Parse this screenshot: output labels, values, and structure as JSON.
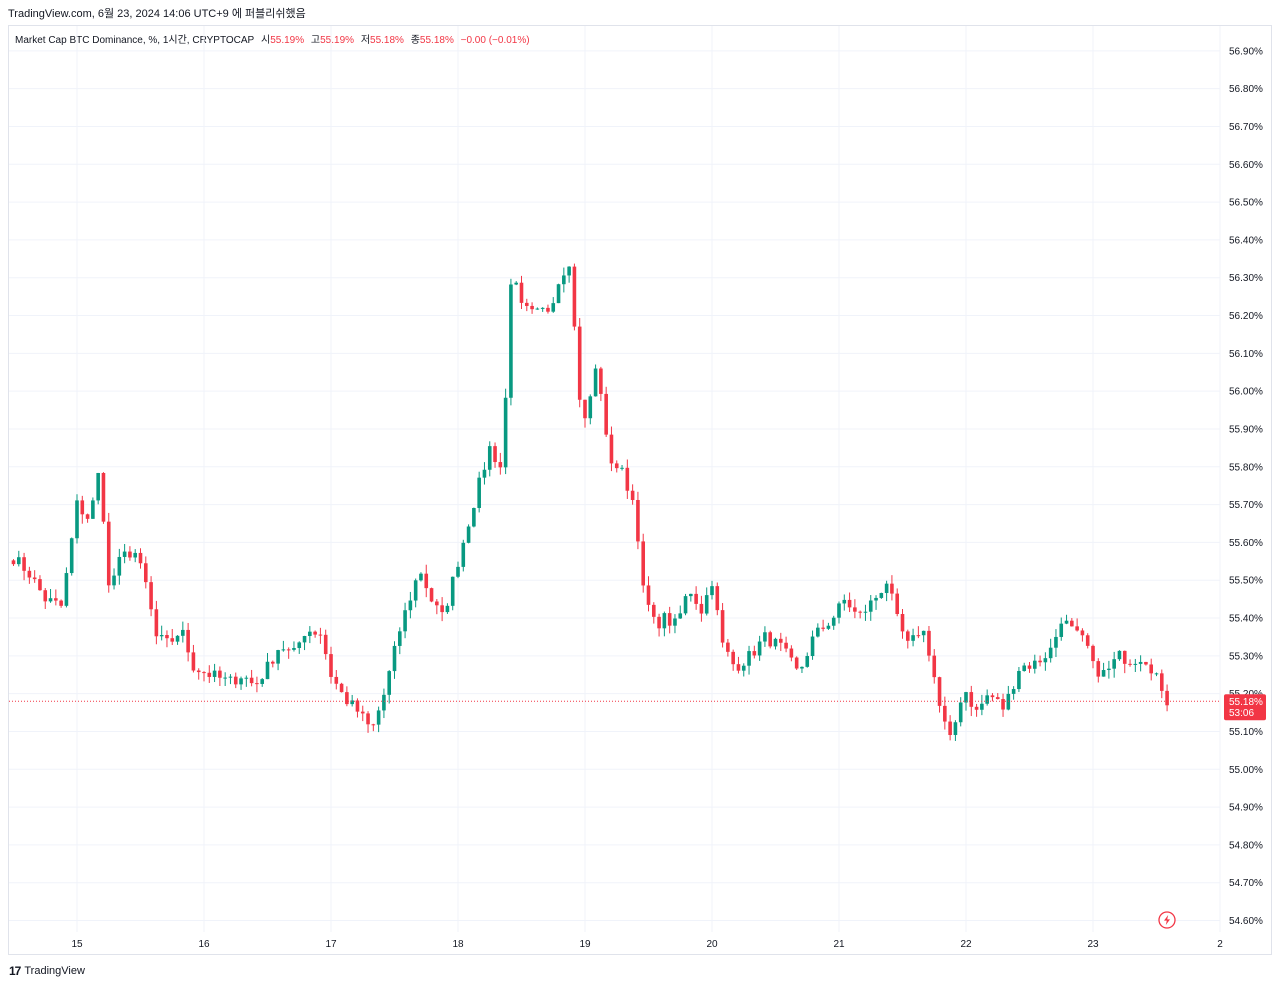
{
  "header": {
    "snapshot_text": "TradingView.com, 6월 23, 2024 14:06 UTC+9 에 퍼블리쉬했음"
  },
  "legend": {
    "symbol": "Market Cap BTC Dominance, %, 1시간, CRYPTOCAP",
    "open_label": "시",
    "open_value": "55.19%",
    "high_label": "고",
    "high_value": "55.19%",
    "low_label": "저",
    "low_value": "55.18%",
    "close_label": "종",
    "close_value": "55.18%",
    "change": "−0.00 (−0.01%)"
  },
  "footer": {
    "brand": "TradingView",
    "logo_icon": "tradingview-logo-icon"
  },
  "colors": {
    "up": "#089981",
    "down": "#f23645",
    "grid": "#f0f3fa",
    "text": "#131722"
  },
  "chart_data": {
    "type": "candlestick",
    "title": "Market Cap BTC Dominance, %, 1시간, CRYPTOCAP",
    "ylim": [
      54.55,
      56.97
    ],
    "y_ticks": [
      "54.60%",
      "54.70%",
      "54.80%",
      "54.90%",
      "55.00%",
      "55.10%",
      "55.20%",
      "55.30%",
      "55.40%",
      "55.50%",
      "55.60%",
      "55.70%",
      "55.80%",
      "55.90%",
      "56.00%",
      "56.10%",
      "56.20%",
      "56.30%",
      "56.40%",
      "56.50%",
      "56.60%",
      "56.70%",
      "56.80%",
      "56.90%"
    ],
    "x_ticks": [
      "15",
      "16",
      "17",
      "18",
      "19",
      "20",
      "21",
      "22",
      "23",
      "2"
    ],
    "last_price_label": "55.18%",
    "countdown_label": "53:06",
    "last_price": 55.18,
    "grid": true,
    "anchors": [
      [
        "14.50",
        55.56
      ],
      [
        "14.62",
        55.52
      ],
      [
        "14.75",
        55.45
      ],
      [
        "14.88",
        55.43
      ],
      [
        "15.00",
        55.7
      ],
      [
        "15.10",
        55.66
      ],
      [
        "15.18",
        55.8
      ],
      [
        "15.25",
        55.48
      ],
      [
        "15.35",
        55.56
      ],
      [
        "15.45",
        55.58
      ],
      [
        "15.55",
        55.48
      ],
      [
        "15.62",
        55.35
      ],
      [
        "15.72",
        55.33
      ],
      [
        "15.82",
        55.37
      ],
      [
        "15.92",
        55.27
      ],
      [
        "16.05",
        55.25
      ],
      [
        "16.20",
        55.23
      ],
      [
        "16.30",
        55.25
      ],
      [
        "16.40",
        55.22
      ],
      [
        "16.50",
        55.27
      ],
      [
        "16.60",
        55.33
      ],
      [
        "16.70",
        55.3
      ],
      [
        "16.80",
        55.37
      ],
      [
        "16.92",
        55.36
      ],
      [
        "17.00",
        55.25
      ],
      [
        "17.10",
        55.19
      ],
      [
        "17.22",
        55.15
      ],
      [
        "17.32",
        55.1
      ],
      [
        "17.42",
        55.2
      ],
      [
        "17.55",
        55.38
      ],
      [
        "17.70",
        55.53
      ],
      [
        "17.80",
        55.44
      ],
      [
        "17.88",
        55.4
      ],
      [
        "18.00",
        55.55
      ],
      [
        "18.12",
        55.7
      ],
      [
        "18.25",
        55.85
      ],
      [
        "18.35",
        55.79
      ],
      [
        "18.42",
        56.32
      ],
      [
        "18.50",
        56.22
      ],
      [
        "18.60",
        56.2
      ],
      [
        "18.72",
        56.22
      ],
      [
        "18.80",
        56.3
      ],
      [
        "18.88",
        56.35
      ],
      [
        "18.95",
        56.0
      ],
      [
        "19.00",
        55.92
      ],
      [
        "19.10",
        56.08
      ],
      [
        "19.18",
        55.83
      ],
      [
        "19.30",
        55.78
      ],
      [
        "19.40",
        55.69
      ],
      [
        "19.45",
        55.48
      ],
      [
        "19.55",
        55.38
      ],
      [
        "19.62",
        55.4
      ],
      [
        "19.72",
        55.38
      ],
      [
        "19.82",
        55.48
      ],
      [
        "19.92",
        55.42
      ],
      [
        "20.00",
        55.5
      ],
      [
        "20.08",
        55.33
      ],
      [
        "20.18",
        55.27
      ],
      [
        "20.30",
        55.3
      ],
      [
        "20.42",
        55.35
      ],
      [
        "20.55",
        55.32
      ],
      [
        "20.68",
        55.25
      ],
      [
        "20.80",
        55.35
      ],
      [
        "20.95",
        55.4
      ],
      [
        "21.05",
        55.45
      ],
      [
        "21.15",
        55.4
      ],
      [
        "21.28",
        55.45
      ],
      [
        "21.38",
        55.5
      ],
      [
        "21.45",
        55.4
      ],
      [
        "21.55",
        55.32
      ],
      [
        "21.65",
        55.38
      ],
      [
        "21.72",
        55.3
      ],
      [
        "21.80",
        55.15
      ],
      [
        "21.88",
        55.07
      ],
      [
        "21.98",
        55.22
      ],
      [
        "22.08",
        55.15
      ],
      [
        "22.18",
        55.2
      ],
      [
        "22.30",
        55.16
      ],
      [
        "22.42",
        55.27
      ],
      [
        "22.55",
        55.28
      ],
      [
        "22.68",
        55.32
      ],
      [
        "22.75",
        55.4
      ],
      [
        "22.85",
        55.36
      ],
      [
        "22.95",
        55.33
      ],
      [
        "23.00",
        55.27
      ],
      [
        "23.10",
        55.25
      ],
      [
        "23.20",
        55.3
      ],
      [
        "23.30",
        55.29
      ],
      [
        "23.40",
        55.3
      ],
      [
        "23.50",
        55.25
      ],
      [
        "23.55",
        55.18
      ],
      [
        "23.60",
        55.18
      ]
    ]
  }
}
